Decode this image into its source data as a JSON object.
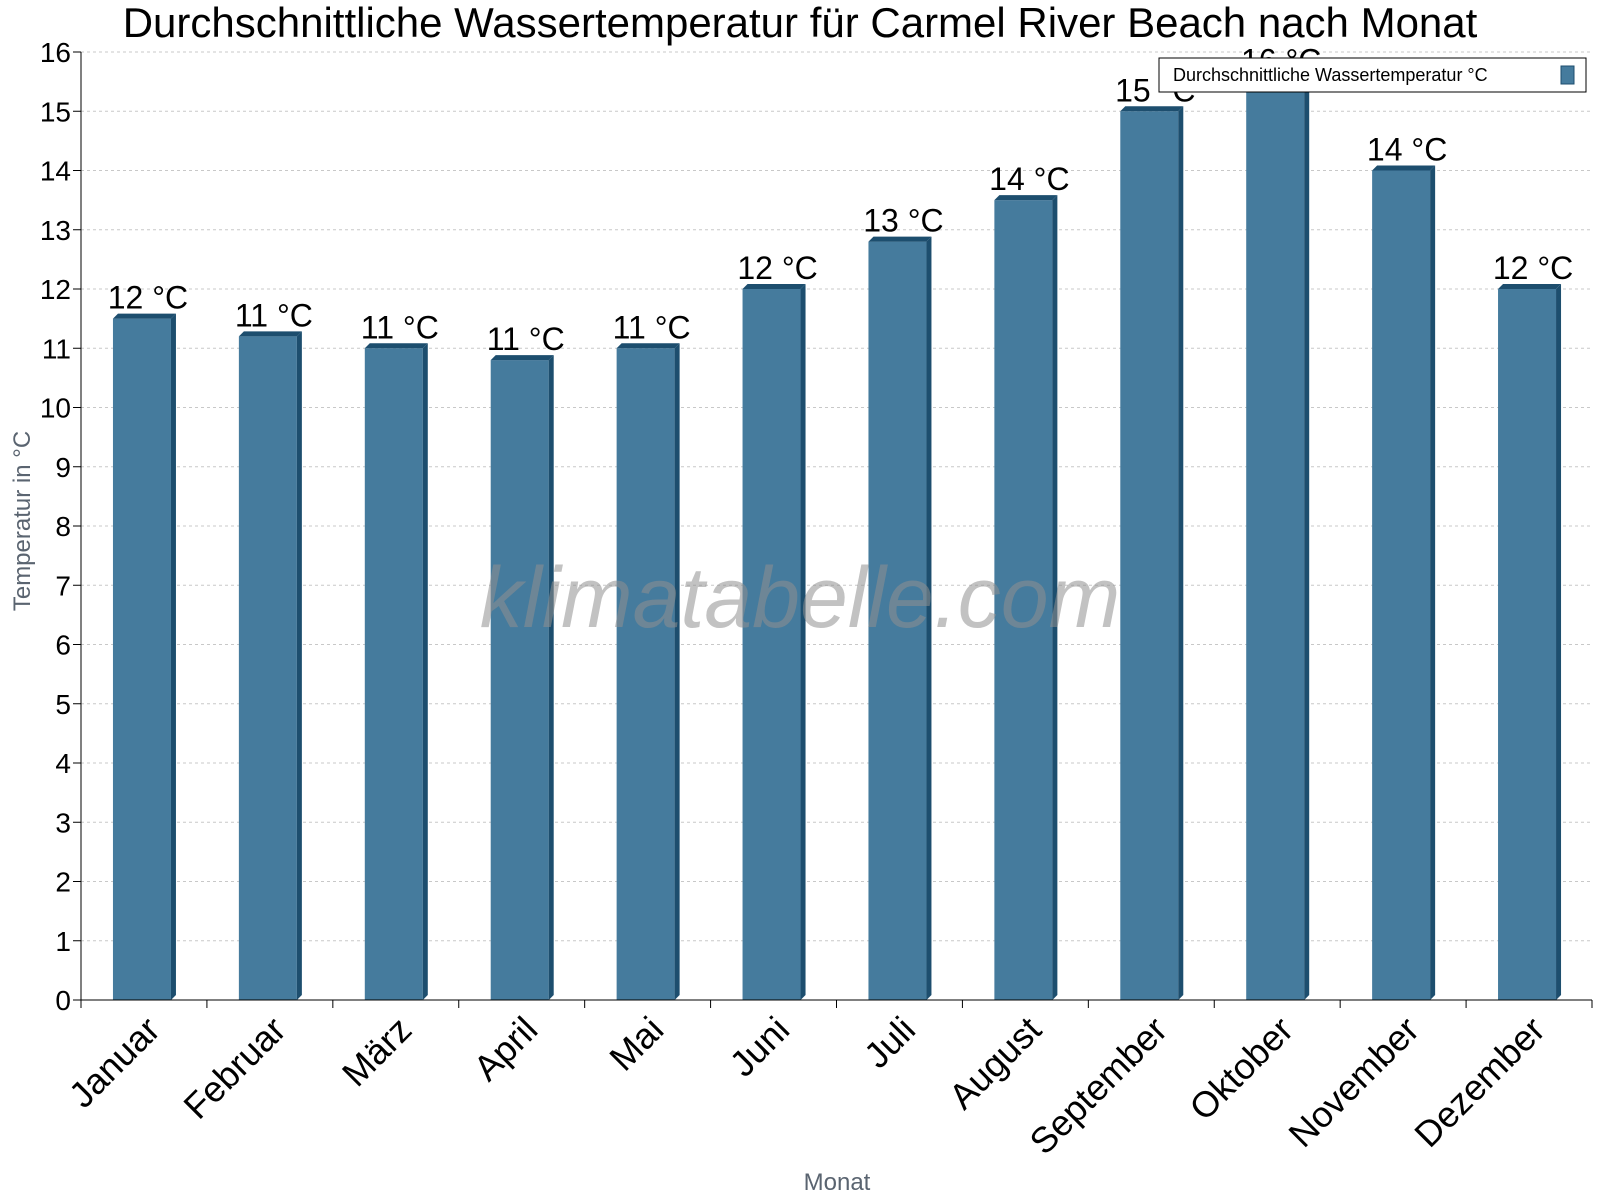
{
  "watermark": "klimatabelle.com",
  "colors": {
    "bar": "#457b9d",
    "bar_dark": "#1d4e6e",
    "grid": "#c8c8c8",
    "axis": "#000000"
  },
  "chart_data": {
    "type": "bar",
    "title": "Durchschnittliche Wassertemperatur für Carmel River Beach nach Monat",
    "xlabel": "Monat",
    "ylabel": "Temperatur in °C",
    "ylim": [
      0,
      16
    ],
    "yticks": [
      "0",
      "1",
      "2",
      "3",
      "4",
      "5",
      "6",
      "7",
      "8",
      "9",
      "10",
      "11",
      "12",
      "13",
      "14",
      "15",
      "16"
    ],
    "grid": true,
    "legend_position": "top-right",
    "categories": [
      "Januar",
      "Februar",
      "März",
      "April",
      "Mai",
      "Juni",
      "Juli",
      "August",
      "September",
      "Oktober",
      "November",
      "Dezember"
    ],
    "series": [
      {
        "name": "Durchschnittliche Wassertemperatur °C",
        "values": [
          11.5,
          11.2,
          11.0,
          10.8,
          11.0,
          12.0,
          12.8,
          13.5,
          15.0,
          15.5,
          14.0,
          12.0
        ],
        "labels": [
          "12 °C",
          "11 °C",
          "11 °C",
          "11 °C",
          "11 °C",
          "12 °C",
          "13 °C",
          "14 °C",
          "15 °C",
          "16 °C",
          "14 °C",
          "12 °C"
        ]
      }
    ]
  }
}
